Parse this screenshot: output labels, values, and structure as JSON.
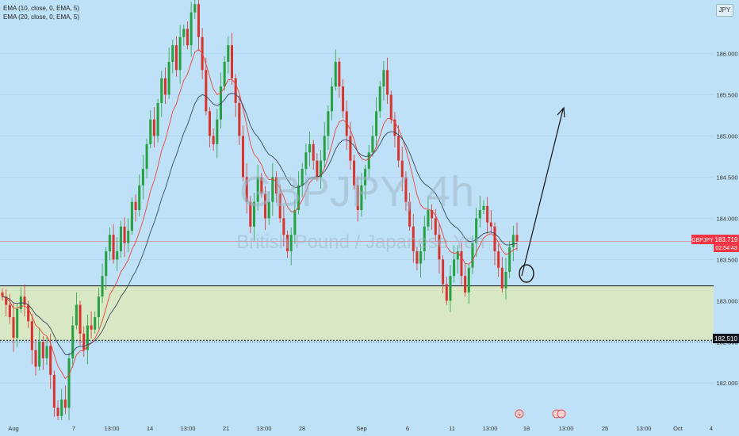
{
  "legend": {
    "ema1": "EMA (10, close, 0, EMA, 5)",
    "ema2": "EMA (20, close, 0, EMA, 5)"
  },
  "currency_button": "JPY",
  "watermark": {
    "symbol": "GBPJPY, 4h",
    "name": "British Pound / Japanese Yen"
  },
  "price_tag": {
    "symbol": "GBPJPY",
    "price": "183.719",
    "countdown": "02:54:43"
  },
  "level_tag": "182.510",
  "colors": {
    "background": "#bfe1f7",
    "zone": "#d8e8c4",
    "up": "#26a041",
    "down": "#d8342e",
    "ema_fast": "#e8443a",
    "ema_slow": "#37475a",
    "tag": "#f23645"
  },
  "chart_data": {
    "type": "candlestick",
    "symbol": "GBPJPY",
    "timeframe": "4h",
    "ylim": [
      181.55,
      186.65
    ],
    "y_ticks": [
      "182.000",
      "182.500",
      "183.000",
      "183.500",
      "184.000",
      "184.500",
      "185.000",
      "185.500",
      "186.000"
    ],
    "x_ticks": [
      "Aug",
      "7",
      "13:00",
      "14",
      "13:00",
      "21",
      "13:00",
      "28",
      "Sep",
      "6",
      "11",
      "13:00",
      "18",
      "13:00",
      "25",
      "13:00",
      "Oct",
      "4"
    ],
    "support_zone": [
      182.52,
      183.18
    ],
    "current_price": 183.719,
    "series": [
      {
        "name": "EMA (10, close, 0, EMA, 5)",
        "style": "fast"
      },
      {
        "name": "EMA (20, close, 0, EMA, 5)",
        "style": "slow"
      }
    ],
    "close": [
      183.05,
      182.95,
      182.8,
      182.55,
      182.9,
      183.05,
      182.95,
      182.75,
      182.4,
      182.2,
      182.5,
      182.3,
      182.45,
      182.1,
      181.7,
      181.6,
      181.8,
      181.7,
      182.3,
      182.7,
      182.95,
      182.6,
      182.4,
      182.7,
      182.65,
      182.8,
      183.05,
      183.3,
      183.6,
      183.8,
      183.5,
      183.6,
      183.9,
      183.7,
      183.85,
      184.2,
      184.1,
      184.4,
      184.6,
      184.9,
      185.2,
      185.0,
      185.4,
      185.7,
      185.5,
      185.9,
      186.1,
      185.8,
      186.2,
      186.3,
      186.1,
      186.5,
      186.6,
      186.2,
      185.8,
      185.3,
      185.0,
      184.9,
      185.2,
      185.6,
      185.9,
      186.1,
      185.7,
      185.4,
      185.0,
      184.5,
      184.2,
      183.9,
      184.2,
      184.5,
      184.3,
      184.0,
      184.2,
      184.5,
      184.3,
      184.0,
      183.8,
      183.6,
      183.8,
      184.1,
      184.4,
      184.6,
      184.8,
      184.9,
      184.7,
      184.5,
      184.7,
      185.0,
      185.3,
      185.6,
      185.9,
      185.6,
      185.3,
      185.0,
      184.7,
      184.4,
      184.1,
      184.4,
      184.6,
      184.8,
      185.0,
      185.3,
      185.6,
      185.8,
      185.5,
      185.2,
      185.0,
      184.7,
      184.5,
      184.2,
      183.9,
      183.6,
      183.45,
      183.6,
      183.9,
      184.1,
      184.0,
      183.8,
      183.5,
      183.2,
      183.0,
      183.3,
      183.5,
      183.6,
      183.3,
      183.1,
      183.4,
      183.7,
      184.0,
      184.1,
      184.15,
      183.95,
      183.9,
      183.6,
      183.4,
      183.15,
      183.35,
      183.65,
      183.8,
      183.719
    ]
  }
}
